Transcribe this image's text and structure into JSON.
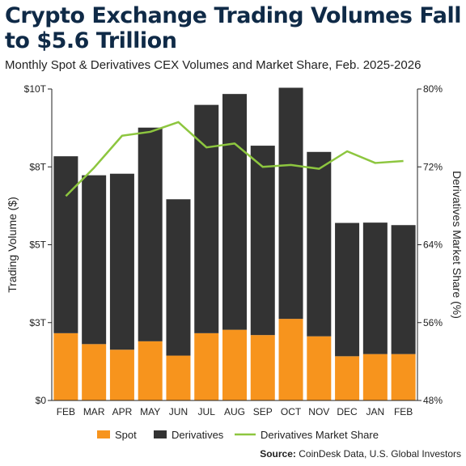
{
  "header": {
    "title": "Crypto Exchange Trading Volumes Fall to $5.6 Trillion",
    "subtitle": "Monthly Spot & Derivatives CEX Volumes and Market Share, Feb. 2025-2026"
  },
  "source": {
    "label": "Source:",
    "text": "CoinDesk Data, U.S. Global Investors"
  },
  "colors": {
    "spot": "#f7941d",
    "derivatives": "#333333",
    "share_line": "#8dc63f"
  },
  "chart_data": {
    "type": "bar",
    "stacked": true,
    "categories": [
      "FEB",
      "MAR",
      "APR",
      "MAY",
      "JUN",
      "JUL",
      "AUG",
      "SEP",
      "OCT",
      "NOV",
      "DEC",
      "JAN",
      "FEB"
    ],
    "series": [
      {
        "name": "Spot",
        "axis": "left",
        "values": [
          2.16,
          1.81,
          1.63,
          1.9,
          1.44,
          2.16,
          2.27,
          2.1,
          2.62,
          2.06,
          1.42,
          1.49,
          1.49
        ]
      },
      {
        "name": "Derivatives",
        "axis": "left",
        "values": [
          5.68,
          5.42,
          5.65,
          6.86,
          5.02,
          7.33,
          7.57,
          6.08,
          7.42,
          5.92,
          4.28,
          4.22,
          4.14
        ]
      },
      {
        "name": "Derivatives Market Share",
        "type": "line",
        "axis": "right",
        "values": [
          69.0,
          71.9,
          75.2,
          75.6,
          76.6,
          74.0,
          74.4,
          72.0,
          72.2,
          71.8,
          73.6,
          72.4,
          72.6
        ]
      }
    ],
    "ylabel": "Trading Volume ($)",
    "ylabel_right": "Derivatives Market Share (%)",
    "ylim": [
      0,
      10
    ],
    "ylim_right": [
      48,
      80
    ],
    "yticks": [
      0,
      2.5,
      5,
      7.5,
      10
    ],
    "ytick_labels": [
      "$0",
      "$3T",
      "$5T",
      "$8T",
      "$10T"
    ],
    "yticks_right": [
      48,
      56,
      64,
      72,
      80
    ],
    "ytick_labels_right": [
      "48%",
      "56%",
      "64%",
      "72%",
      "80%"
    ],
    "legend": [
      "Spot",
      "Derivatives",
      "Derivatives Market Share"
    ],
    "legend_position": "bottom",
    "grid": false
  }
}
